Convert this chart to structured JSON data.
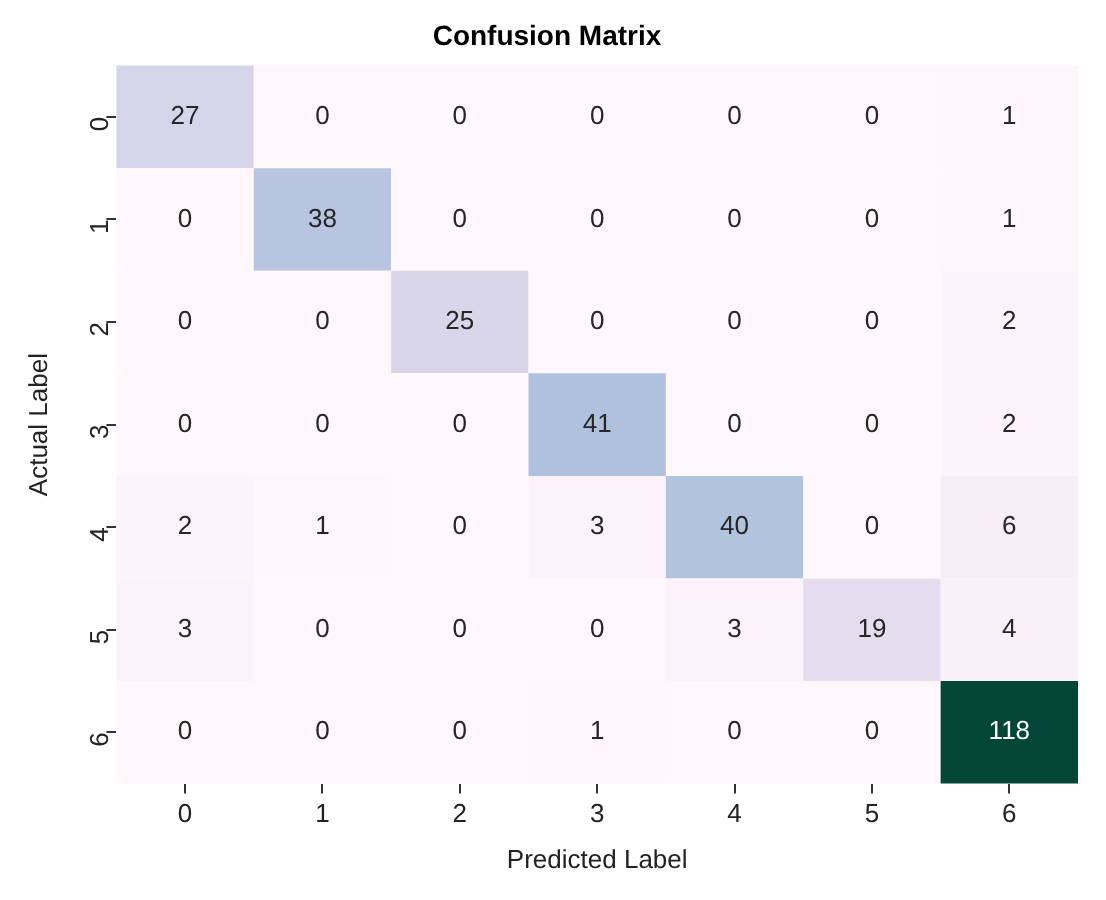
{
  "chart_data": {
    "type": "heatmap",
    "title": "Confusion Matrix",
    "xlabel": "Predicted Label",
    "ylabel": "Actual Label",
    "categories": [
      "0",
      "1",
      "2",
      "3",
      "4",
      "5",
      "6"
    ],
    "y_categories": [
      "0",
      "1",
      "2",
      "3",
      "4",
      "5",
      "6"
    ],
    "cells": [
      [
        27,
        0,
        0,
        0,
        0,
        0,
        1
      ],
      [
        0,
        38,
        0,
        0,
        0,
        0,
        1
      ],
      [
        0,
        0,
        25,
        0,
        0,
        0,
        2
      ],
      [
        0,
        0,
        0,
        41,
        0,
        0,
        2
      ],
      [
        2,
        1,
        0,
        3,
        40,
        0,
        6
      ],
      [
        3,
        0,
        0,
        0,
        3,
        19,
        4
      ],
      [
        0,
        0,
        0,
        1,
        0,
        0,
        118
      ]
    ],
    "data_labels": true
  }
}
